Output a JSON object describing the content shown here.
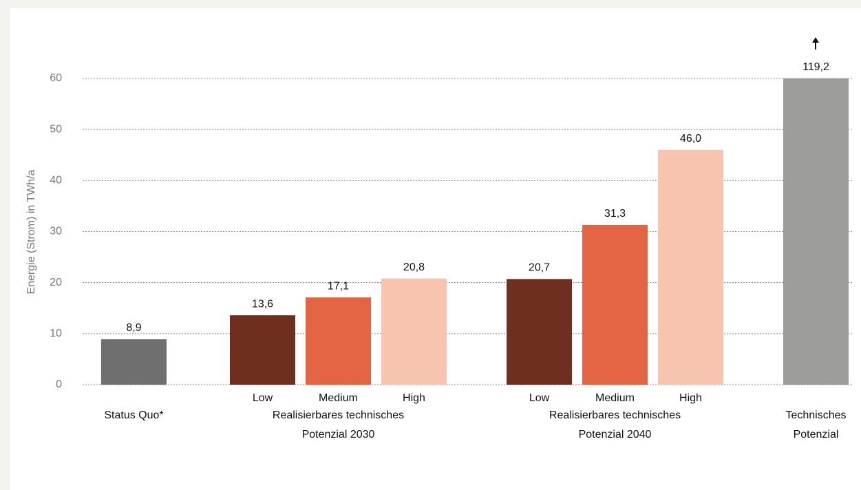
{
  "chart_data": {
    "type": "bar",
    "ylabel": "Energie (Strom) in TWh/a",
    "ylim": [
      0,
      60
    ],
    "yticks": [
      0,
      10,
      20,
      30,
      40,
      50,
      60
    ],
    "grid": true,
    "groups": [
      {
        "label": [
          "Status Quo*"
        ],
        "categories": [
          null
        ],
        "values": [
          8.9
        ],
        "value_labels": [
          "8,9"
        ],
        "colors": [
          "#6f6f6f"
        ]
      },
      {
        "label": [
          "Realisierbares technisches",
          "Potenzial 2030"
        ],
        "categories": [
          "Low",
          "Medium",
          "High"
        ],
        "values": [
          13.6,
          17.1,
          20.8
        ],
        "value_labels": [
          "13,6",
          "17,1",
          "20,8"
        ],
        "colors": [
          "#6e2f1e",
          "#e46544",
          "#f7c4b0"
        ]
      },
      {
        "label": [
          "Realisierbares technisches",
          "Potenzial 2040"
        ],
        "categories": [
          "Low",
          "Medium",
          "High"
        ],
        "values": [
          20.7,
          31.3,
          46.0
        ],
        "value_labels": [
          "20,7",
          "31,3",
          "46,0"
        ],
        "colors": [
          "#6e2f1e",
          "#e46544",
          "#f7c4b0"
        ]
      },
      {
        "label": [
          "Technisches",
          "Potenzial"
        ],
        "categories": [
          null
        ],
        "values": [
          119.2
        ],
        "value_labels": [
          "119,2"
        ],
        "colors": [
          "#9d9d9b"
        ]
      }
    ]
  }
}
